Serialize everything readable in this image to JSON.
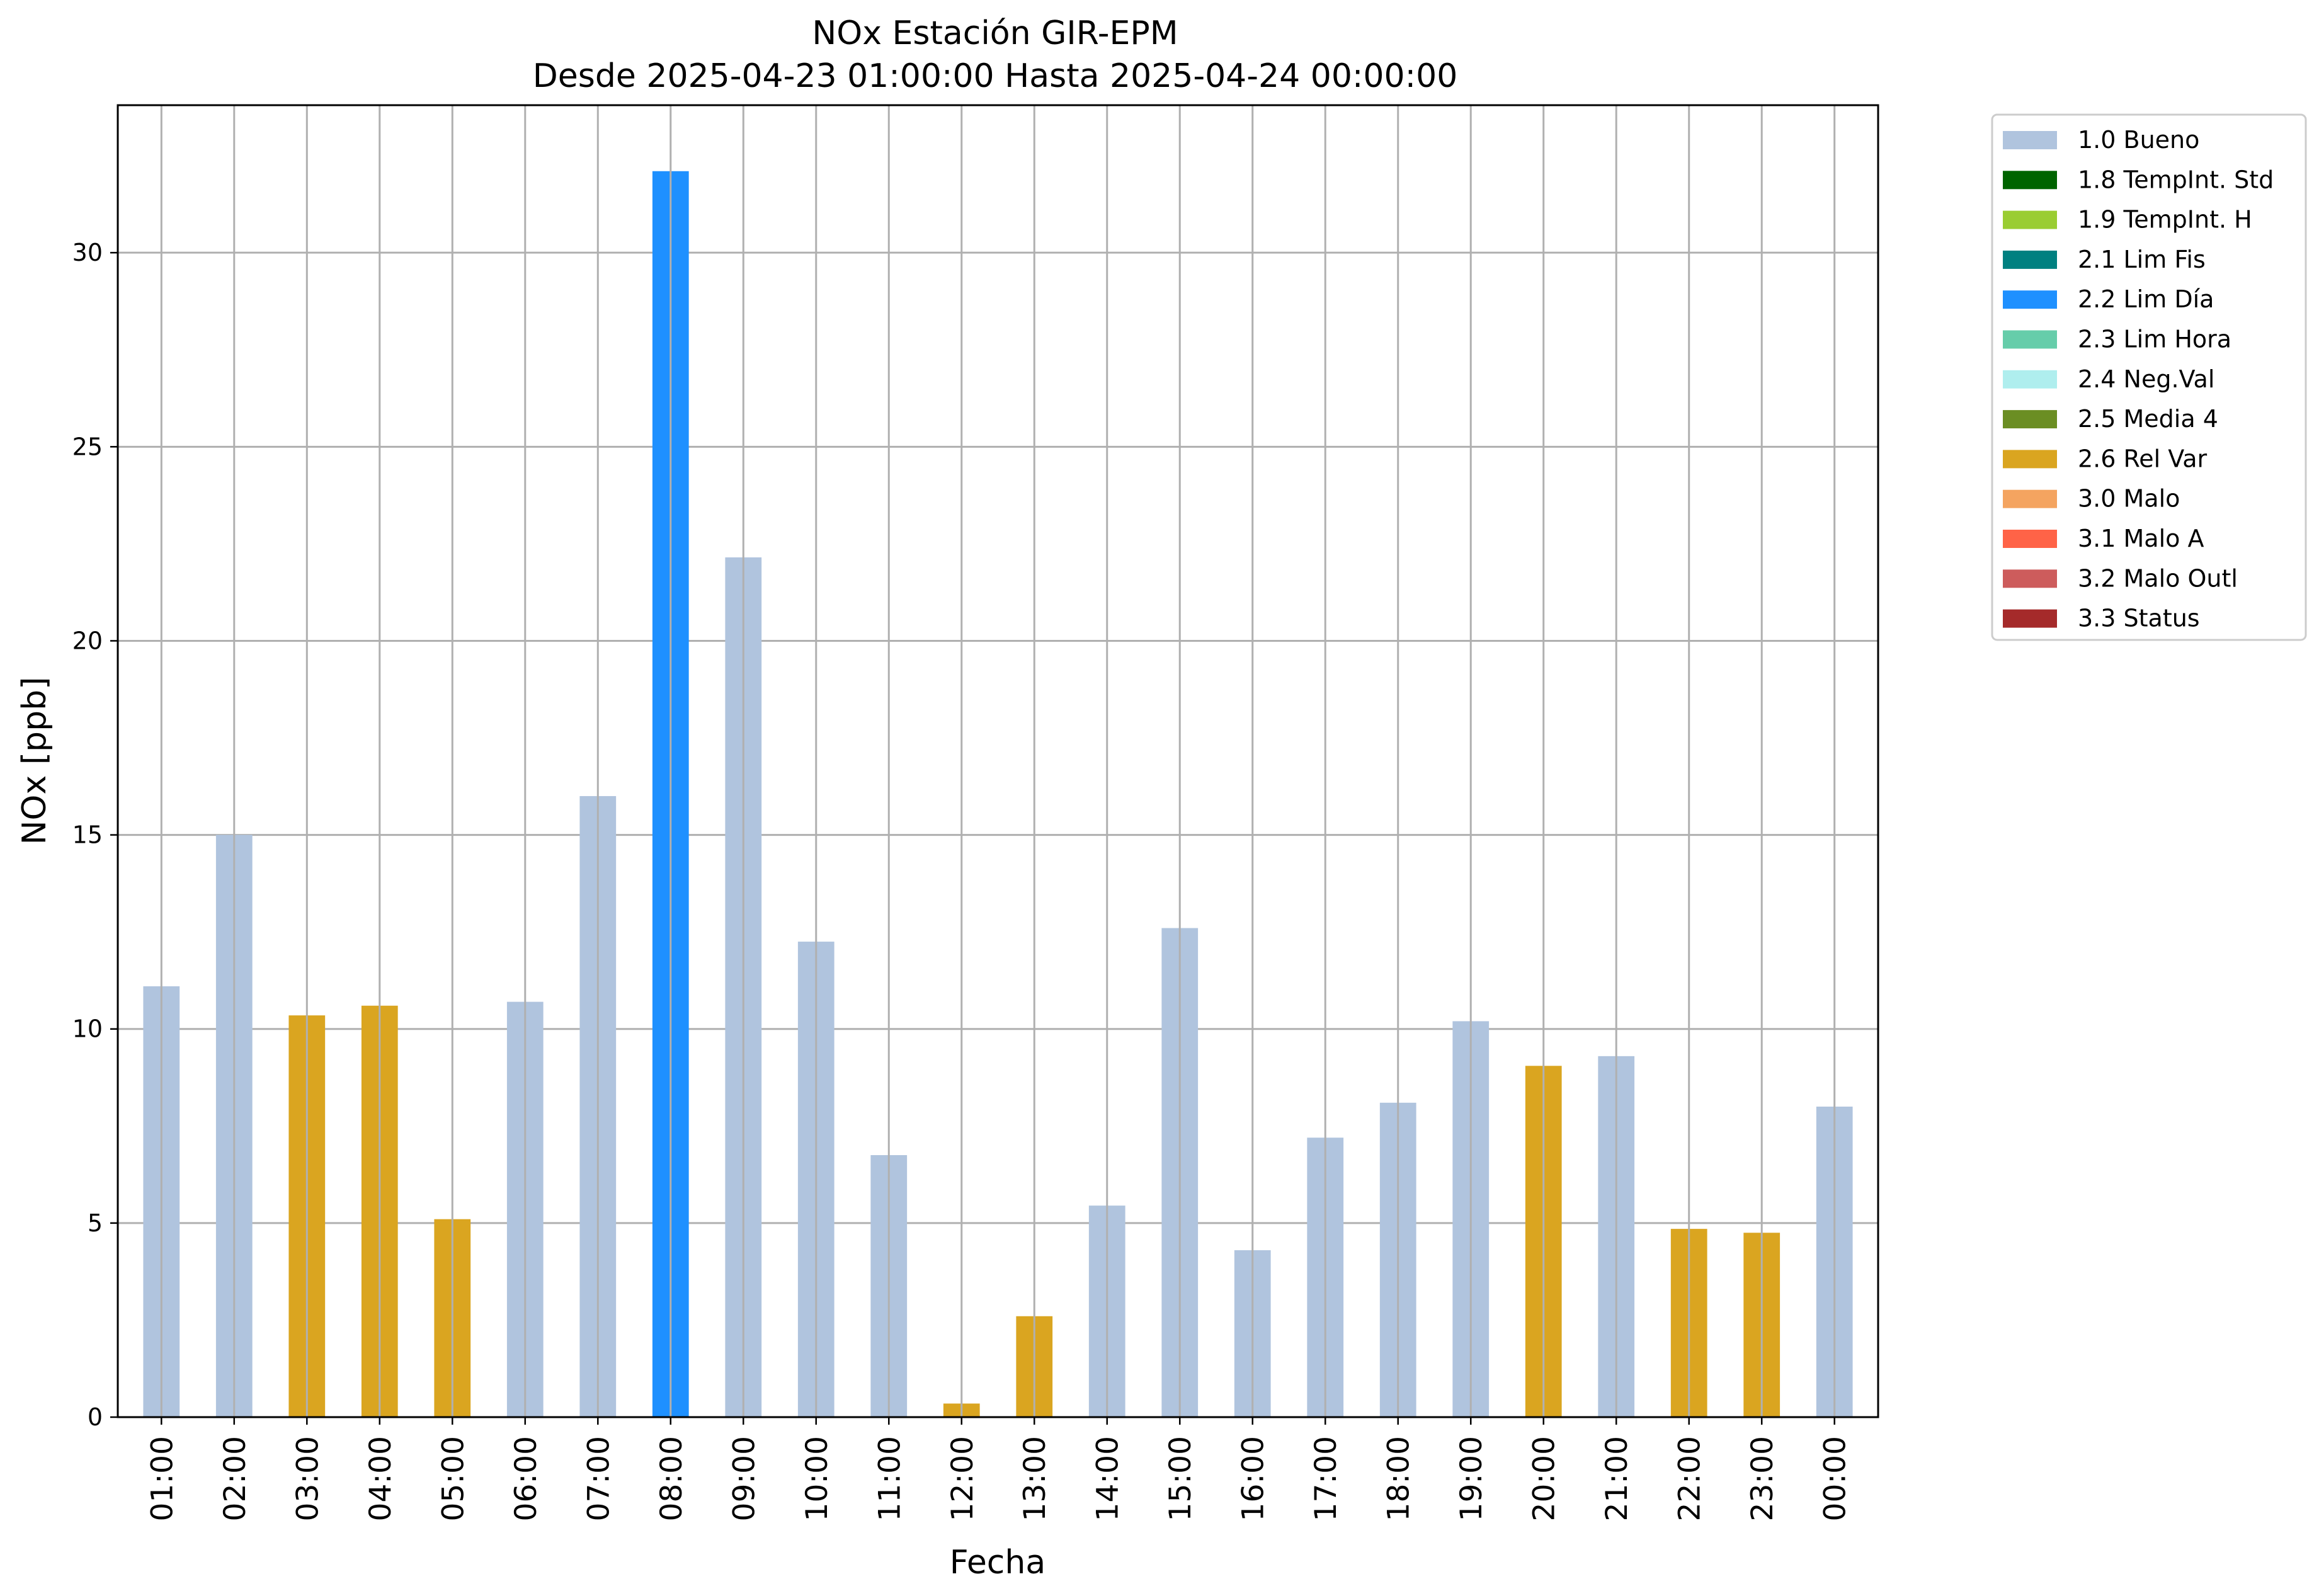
{
  "chart_data": {
    "type": "bar",
    "title": "NOx Estación GIR-EPM",
    "subtitle": "Desde 2025-04-23 01:00:00 Hasta 2025-04-24 00:00:00",
    "xlabel": "Fecha",
    "ylabel": "NOx [ppb]",
    "ylim": [
      0,
      33.8
    ],
    "yticks": [
      "0",
      "5",
      "10",
      "15",
      "20",
      "25",
      "30"
    ],
    "grid": true,
    "legend_position": "outside-right-top",
    "categories": [
      "01:00",
      "02:00",
      "03:00",
      "04:00",
      "05:00",
      "06:00",
      "07:00",
      "08:00",
      "09:00",
      "10:00",
      "11:00",
      "12:00",
      "13:00",
      "14:00",
      "15:00",
      "16:00",
      "17:00",
      "18:00",
      "19:00",
      "20:00",
      "21:00",
      "22:00",
      "23:00",
      "00:00"
    ],
    "values": [
      11.1,
      15.0,
      10.35,
      10.6,
      5.1,
      10.7,
      16.0,
      32.1,
      22.15,
      12.25,
      6.75,
      0.35,
      2.6,
      5.45,
      12.6,
      4.3,
      7.2,
      8.1,
      10.2,
      9.05,
      9.3,
      4.85,
      4.75,
      8.0
    ],
    "flags": [
      "1.0 Bueno",
      "1.0 Bueno",
      "2.6 Rel Var",
      "2.6 Rel Var",
      "2.6 Rel Var",
      "1.0 Bueno",
      "1.0 Bueno",
      "2.2 Lim Día",
      "1.0 Bueno",
      "1.0 Bueno",
      "1.0 Bueno",
      "2.6 Rel Var",
      "2.6 Rel Var",
      "1.0 Bueno",
      "1.0 Bueno",
      "1.0 Bueno",
      "1.0 Bueno",
      "1.0 Bueno",
      "1.0 Bueno",
      "2.6 Rel Var",
      "1.0 Bueno",
      "2.6 Rel Var",
      "2.6 Rel Var",
      "1.0 Bueno"
    ],
    "legend": [
      {
        "label": "1.0 Bueno",
        "color": "#b0c4de"
      },
      {
        "label": "1.8 TempInt. Std",
        "color": "#006400"
      },
      {
        "label": "1.9 TempInt. H",
        "color": "#9acd32"
      },
      {
        "label": "2.1 Lim Fis",
        "color": "#008080"
      },
      {
        "label": "2.2 Lim Día",
        "color": "#1e90ff"
      },
      {
        "label": "2.3 Lim Hora",
        "color": "#66cdaa"
      },
      {
        "label": "2.4 Neg.Val",
        "color": "#afeeee"
      },
      {
        "label": "2.5 Media 4",
        "color": "#6b8e23"
      },
      {
        "label": "2.6 Rel Var",
        "color": "#daa520"
      },
      {
        "label": "3.0 Malo",
        "color": "#f4a460"
      },
      {
        "label": "3.1 Malo A",
        "color": "#ff6347"
      },
      {
        "label": "3.2 Malo Outl",
        "color": "#cd5c5c"
      },
      {
        "label": "3.3 Status",
        "color": "#a52a2a"
      }
    ]
  }
}
